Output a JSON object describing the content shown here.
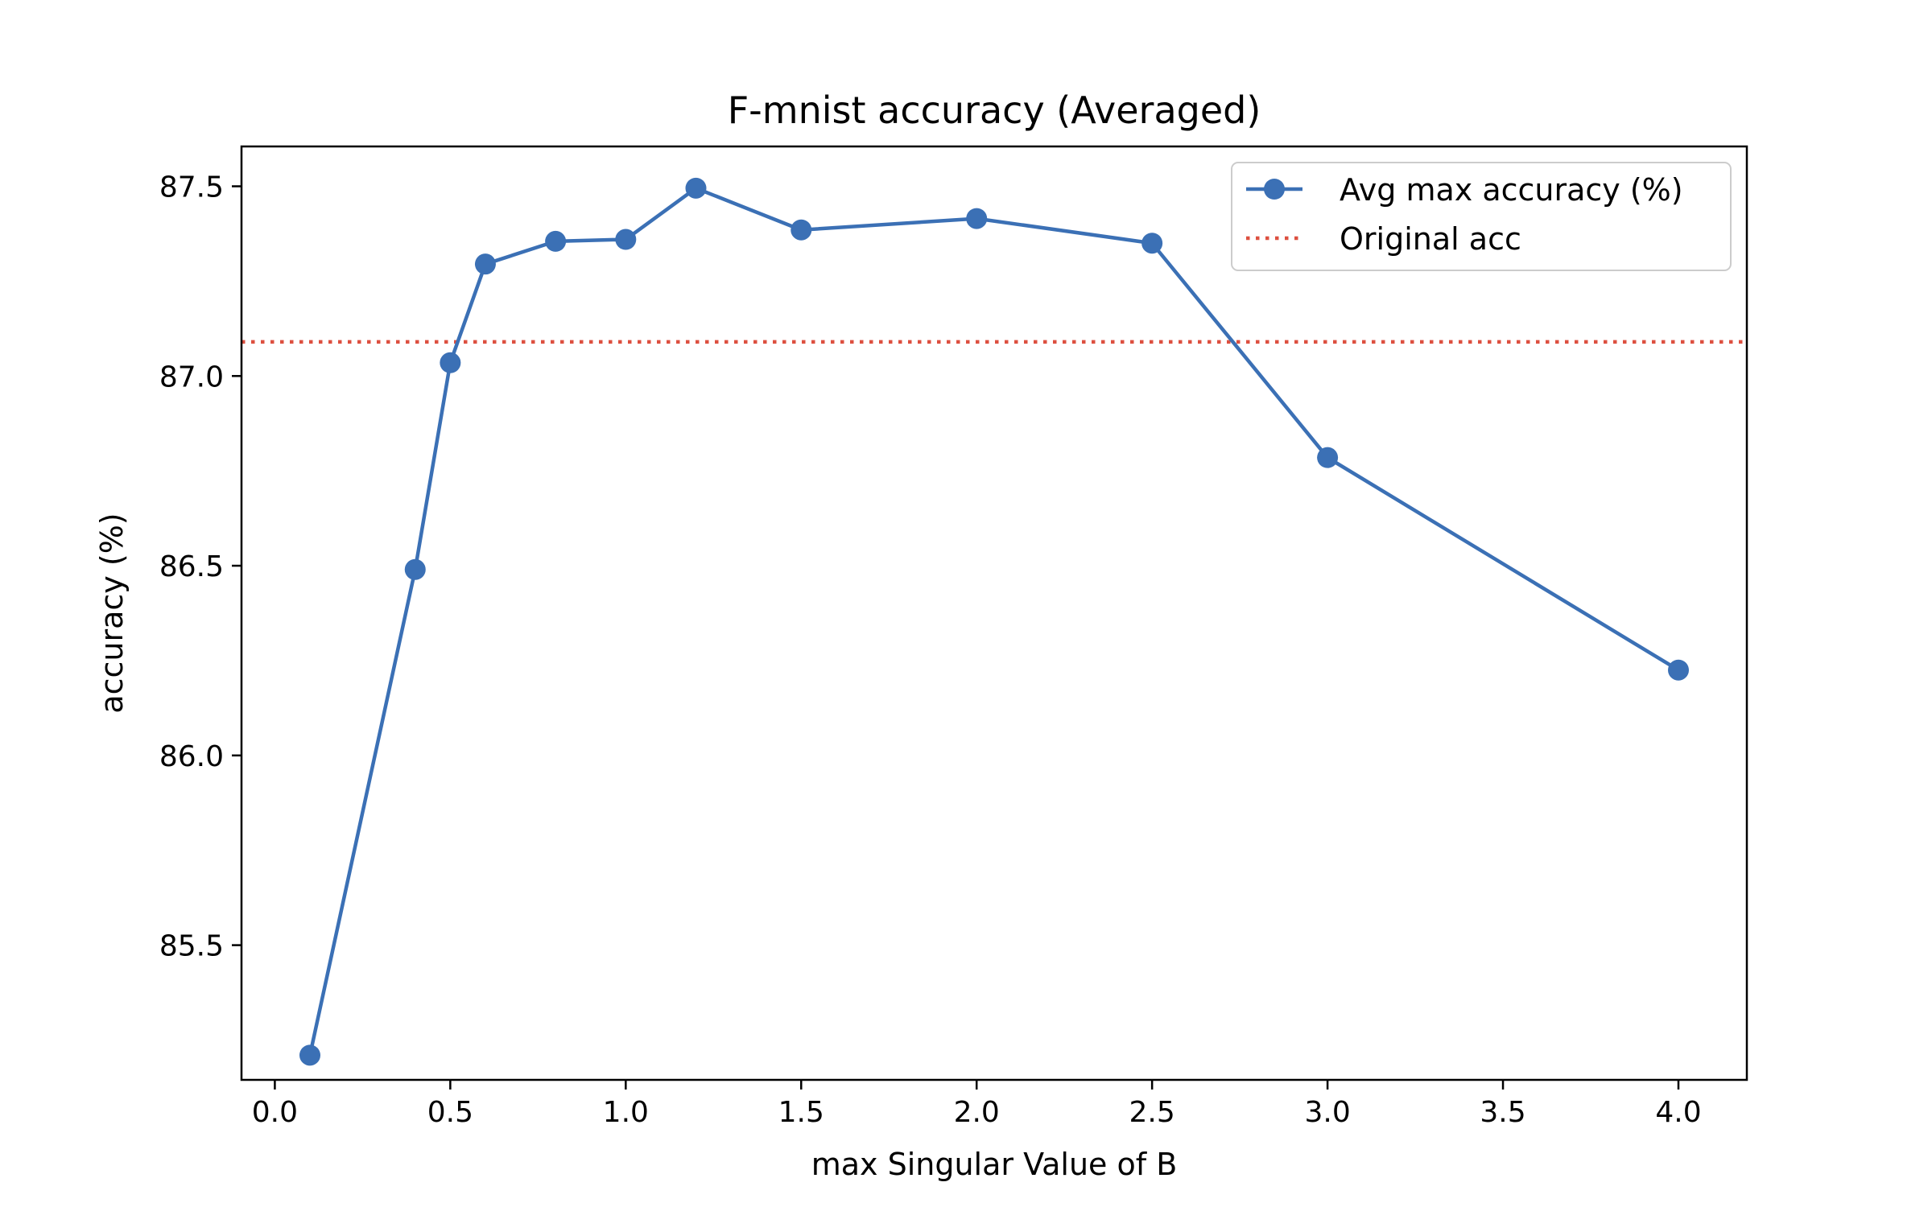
{
  "chart_data": {
    "type": "line",
    "title": "F-mnist accuracy (Averaged)",
    "xlabel": "max Singular Value of B",
    "ylabel": "accuracy (%)",
    "xlim": [
      -0.095,
      4.195
    ],
    "ylim": [
      85.145,
      87.605
    ],
    "xticks": [
      "0.0",
      "0.5",
      "1.0",
      "1.5",
      "2.0",
      "2.5",
      "3.0",
      "3.5",
      "4.0"
    ],
    "yticks": [
      "85.5",
      "86.0",
      "86.5",
      "87.0",
      "87.5"
    ],
    "xtick_values": [
      0.0,
      0.5,
      1.0,
      1.5,
      2.0,
      2.5,
      3.0,
      3.5,
      4.0
    ],
    "ytick_values": [
      85.5,
      86.0,
      86.5,
      87.0,
      87.5
    ],
    "grid": false,
    "legend_position": "upper right",
    "series": [
      {
        "name": "Avg max accuracy (%)",
        "color": "#3b70b5",
        "marker": "circle",
        "x": [
          0.1,
          0.4,
          0.5,
          0.6,
          0.8,
          1.0,
          1.2,
          1.5,
          2.0,
          2.5,
          3.0,
          4.0
        ],
        "y": [
          85.21,
          86.49,
          87.035,
          87.295,
          87.355,
          87.36,
          87.495,
          87.385,
          87.415,
          87.35,
          86.785,
          86.225
        ]
      }
    ],
    "reference_lines": [
      {
        "name": "Original acc",
        "orientation": "horizontal",
        "y": 87.09,
        "color": "#dd5040",
        "style": "dotted"
      }
    ]
  }
}
